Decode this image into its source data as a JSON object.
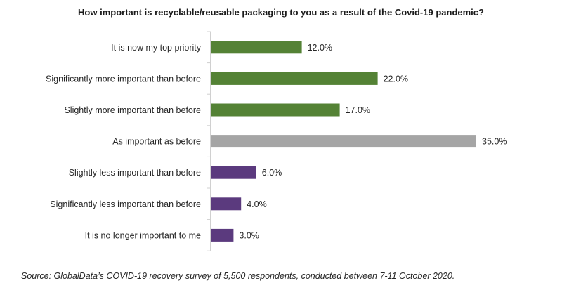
{
  "chart_data": {
    "type": "bar",
    "orientation": "horizontal",
    "title": "How important is recyclable/reusable packaging to you as a result of the Covid-19 pandemic?",
    "xlabel": "",
    "ylabel": "",
    "grid": false,
    "legend": "none",
    "xlim": [
      0,
      35
    ],
    "categories": [
      "It is now my top priority",
      "Significantly more important than before",
      "Slightly more important than before",
      "As important as before",
      "Slightly less important than before",
      "Significantly less important than before",
      "It is no longer important to me"
    ],
    "values": [
      12.0,
      22.0,
      17.0,
      35.0,
      6.0,
      4.0,
      3.0
    ],
    "value_labels": [
      "12.0%",
      "22.0%",
      "17.0%",
      "35.0%",
      "6.0%",
      "4.0%",
      "3.0%"
    ],
    "bar_colors": [
      "#548235",
      "#548235",
      "#548235",
      "#a5a5a5",
      "#5b3a7e",
      "#5b3a7e",
      "#5b3a7e"
    ],
    "source": "Source: GlobalData’s COVID-19 recovery survey of 5,500 respondents, conducted between 7-11 October 2020."
  }
}
